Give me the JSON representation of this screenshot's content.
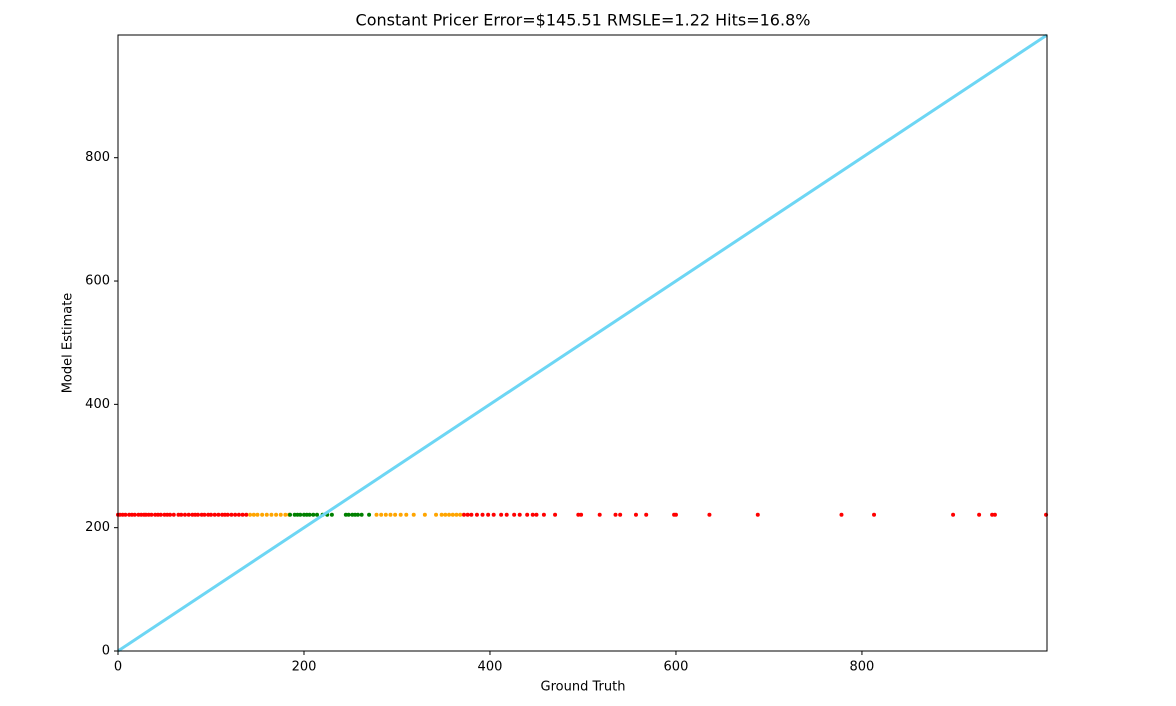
{
  "chart_data": {
    "type": "scatter",
    "title": "Constant Pricer Error=$145.51 RMSLE=1.22 Hits=16.8%",
    "x_label": "Ground Truth",
    "y_label": "Model Estimate",
    "xlim": [
      0,
      999
    ],
    "ylim": [
      0,
      999
    ],
    "xticks": [
      0,
      200,
      400,
      600,
      800
    ],
    "yticks": [
      0,
      200,
      400,
      600,
      800
    ],
    "reference_line": {
      "color": "#6dd6f4",
      "x": [
        0,
        999
      ],
      "values": [
        0,
        999
      ]
    },
    "series": [
      {
        "color": "#ff0000",
        "x": [
          0,
          2,
          5,
          8,
          12,
          15,
          18,
          22,
          25,
          28,
          30,
          33,
          36,
          40,
          43,
          46,
          50,
          53,
          56,
          60,
          65,
          68,
          72,
          76,
          80,
          83,
          86,
          90,
          93,
          97,
          100,
          104,
          108,
          112,
          115,
          118,
          122,
          126,
          130,
          134,
          138,
          372,
          376,
          380,
          386,
          392,
          398,
          404,
          412,
          418,
          426,
          432,
          440,
          446,
          450,
          458,
          470,
          495,
          498,
          518,
          535,
          540,
          557,
          568,
          598,
          600,
          636,
          688,
          778,
          813,
          898,
          926,
          940,
          943,
          998
        ],
        "values": [
          221,
          221,
          221,
          221,
          221,
          221,
          221,
          221,
          221,
          221,
          221,
          221,
          221,
          221,
          221,
          221,
          221,
          221,
          221,
          221,
          221,
          221,
          221,
          221,
          221,
          221,
          221,
          221,
          221,
          221,
          221,
          221,
          221,
          221,
          221,
          221,
          221,
          221,
          221,
          221,
          221,
          221,
          221,
          221,
          221,
          221,
          221,
          221,
          221,
          221,
          221,
          221,
          221,
          221,
          221,
          221,
          221,
          221,
          221,
          221,
          221,
          221,
          221,
          221,
          221,
          221,
          221,
          221,
          221,
          221,
          221,
          221,
          221,
          221,
          221
        ]
      },
      {
        "color": "#ffa500",
        "x": [
          142,
          146,
          150,
          155,
          160,
          165,
          170,
          175,
          180,
          184,
          278,
          283,
          288,
          293,
          298,
          304,
          310,
          318,
          330,
          342,
          348,
          352,
          356,
          360,
          364,
          368
        ],
        "values": [
          221,
          221,
          221,
          221,
          221,
          221,
          221,
          221,
          221,
          221,
          221,
          221,
          221,
          221,
          221,
          221,
          221,
          221,
          221,
          221,
          221,
          221,
          221,
          221,
          221,
          221
        ]
      },
      {
        "color": "#008000",
        "x": [
          185,
          190,
          193,
          196,
          200,
          203,
          206,
          210,
          214,
          220,
          225,
          230,
          245,
          248,
          252,
          255,
          258,
          262,
          270
        ],
        "values": [
          221,
          221,
          221,
          221,
          221,
          221,
          221,
          221,
          221,
          221,
          221,
          221,
          221,
          221,
          221,
          221,
          221,
          221,
          221
        ]
      }
    ]
  }
}
